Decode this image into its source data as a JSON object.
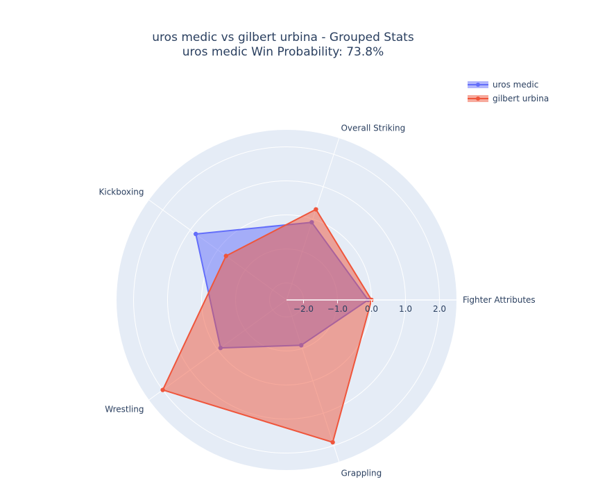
{
  "chart_data": {
    "type": "radar",
    "title_line1": "uros medic vs gilbert urbina - Grouped Stats",
    "title_line2": "uros medic Win Probability: 73.8%",
    "categories": [
      "Fighter Attributes",
      "Overall Striking",
      "Kickboxing",
      "Wrestling",
      "Grappling"
    ],
    "radial_range": [
      -2.5,
      2.5
    ],
    "radial_ticks": [
      -2.0,
      -1.0,
      0.0,
      1.0,
      2.0
    ],
    "radial_tick_labels": [
      "−2.0",
      "−1.0",
      "0.0",
      "1.0",
      "2.0"
    ],
    "legend_placement": "top-right",
    "series": [
      {
        "name": "uros medic",
        "color": "#636efa",
        "values": [
          -0.1,
          -0.1,
          0.8,
          -0.1,
          -1.1
        ]
      },
      {
        "name": "gilbert urbina",
        "color": "#ef553b",
        "values": [
          0.0,
          0.3,
          -0.3,
          2.0,
          1.9
        ]
      }
    ]
  }
}
